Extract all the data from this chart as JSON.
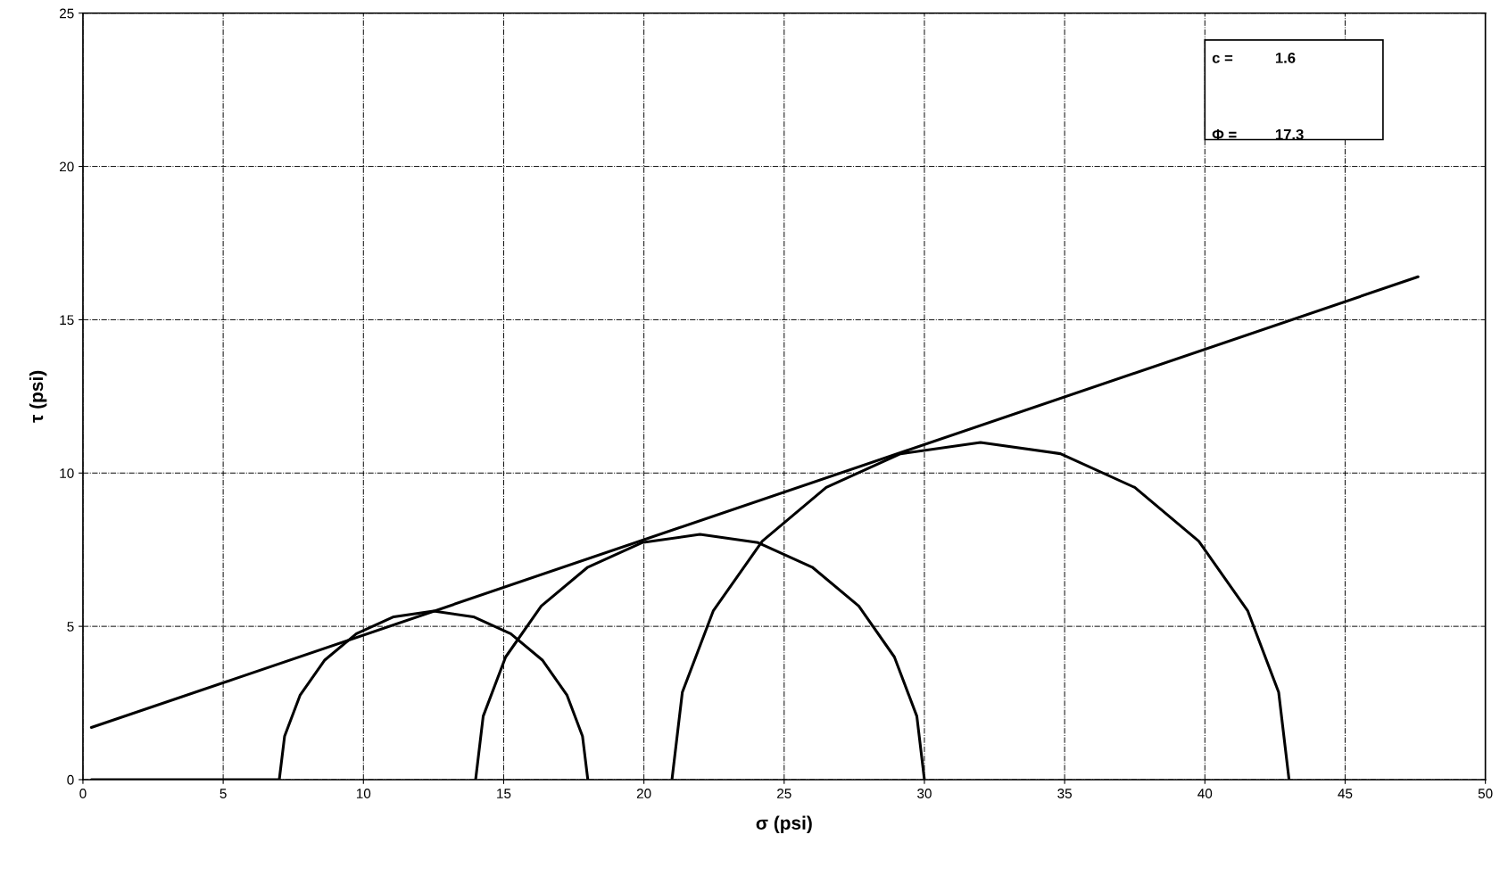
{
  "chart_data": {
    "type": "line",
    "xlabel": "σ (psi)",
    "ylabel": "τ (psi)",
    "xlim": [
      0,
      50
    ],
    "ylim": [
      0,
      25
    ],
    "xticks": [
      0,
      5,
      10,
      15,
      20,
      25,
      30,
      35,
      40,
      45,
      50
    ],
    "yticks": [
      0,
      5,
      10,
      15,
      20,
      25
    ],
    "grid": true,
    "legend": false,
    "marker": "none",
    "line_style": "solid",
    "series": [
      {
        "color": "#000000",
        "x": [
          0.3,
          7,
          7.19,
          7.74,
          8.61,
          9.75,
          11.08,
          12.5,
          13.92,
          15.25,
          16.39,
          17.26,
          17.81,
          18
        ],
        "values": [
          0,
          0,
          1.42,
          2.75,
          3.89,
          4.76,
          5.31,
          5.5,
          5.31,
          4.76,
          3.89,
          2.75,
          1.42,
          0
        ]
      },
      {
        "color": "#000000",
        "x": [
          14,
          14.27,
          15.07,
          16.34,
          18,
          19.93,
          22,
          24.07,
          26,
          27.66,
          28.93,
          29.73,
          30
        ],
        "values": [
          0,
          2.07,
          4,
          5.66,
          6.93,
          7.73,
          8,
          7.73,
          6.93,
          5.66,
          4,
          2.07,
          0
        ]
      },
      {
        "color": "#000000",
        "x": [
          21,
          21.37,
          22.47,
          24.22,
          26.5,
          29.15,
          32,
          34.85,
          37.5,
          39.78,
          41.53,
          42.63,
          43
        ],
        "values": [
          0,
          2.85,
          5.5,
          7.78,
          9.53,
          10.63,
          11,
          10.63,
          9.53,
          7.78,
          5.5,
          2.85,
          0
        ]
      },
      {
        "color": "#000000",
        "x": [
          0.3,
          47.6
        ],
        "values": [
          1.7,
          16.4
        ]
      }
    ],
    "annotations": [
      "c =",
      "1.6",
      "Φ =",
      "17.3"
    ]
  }
}
